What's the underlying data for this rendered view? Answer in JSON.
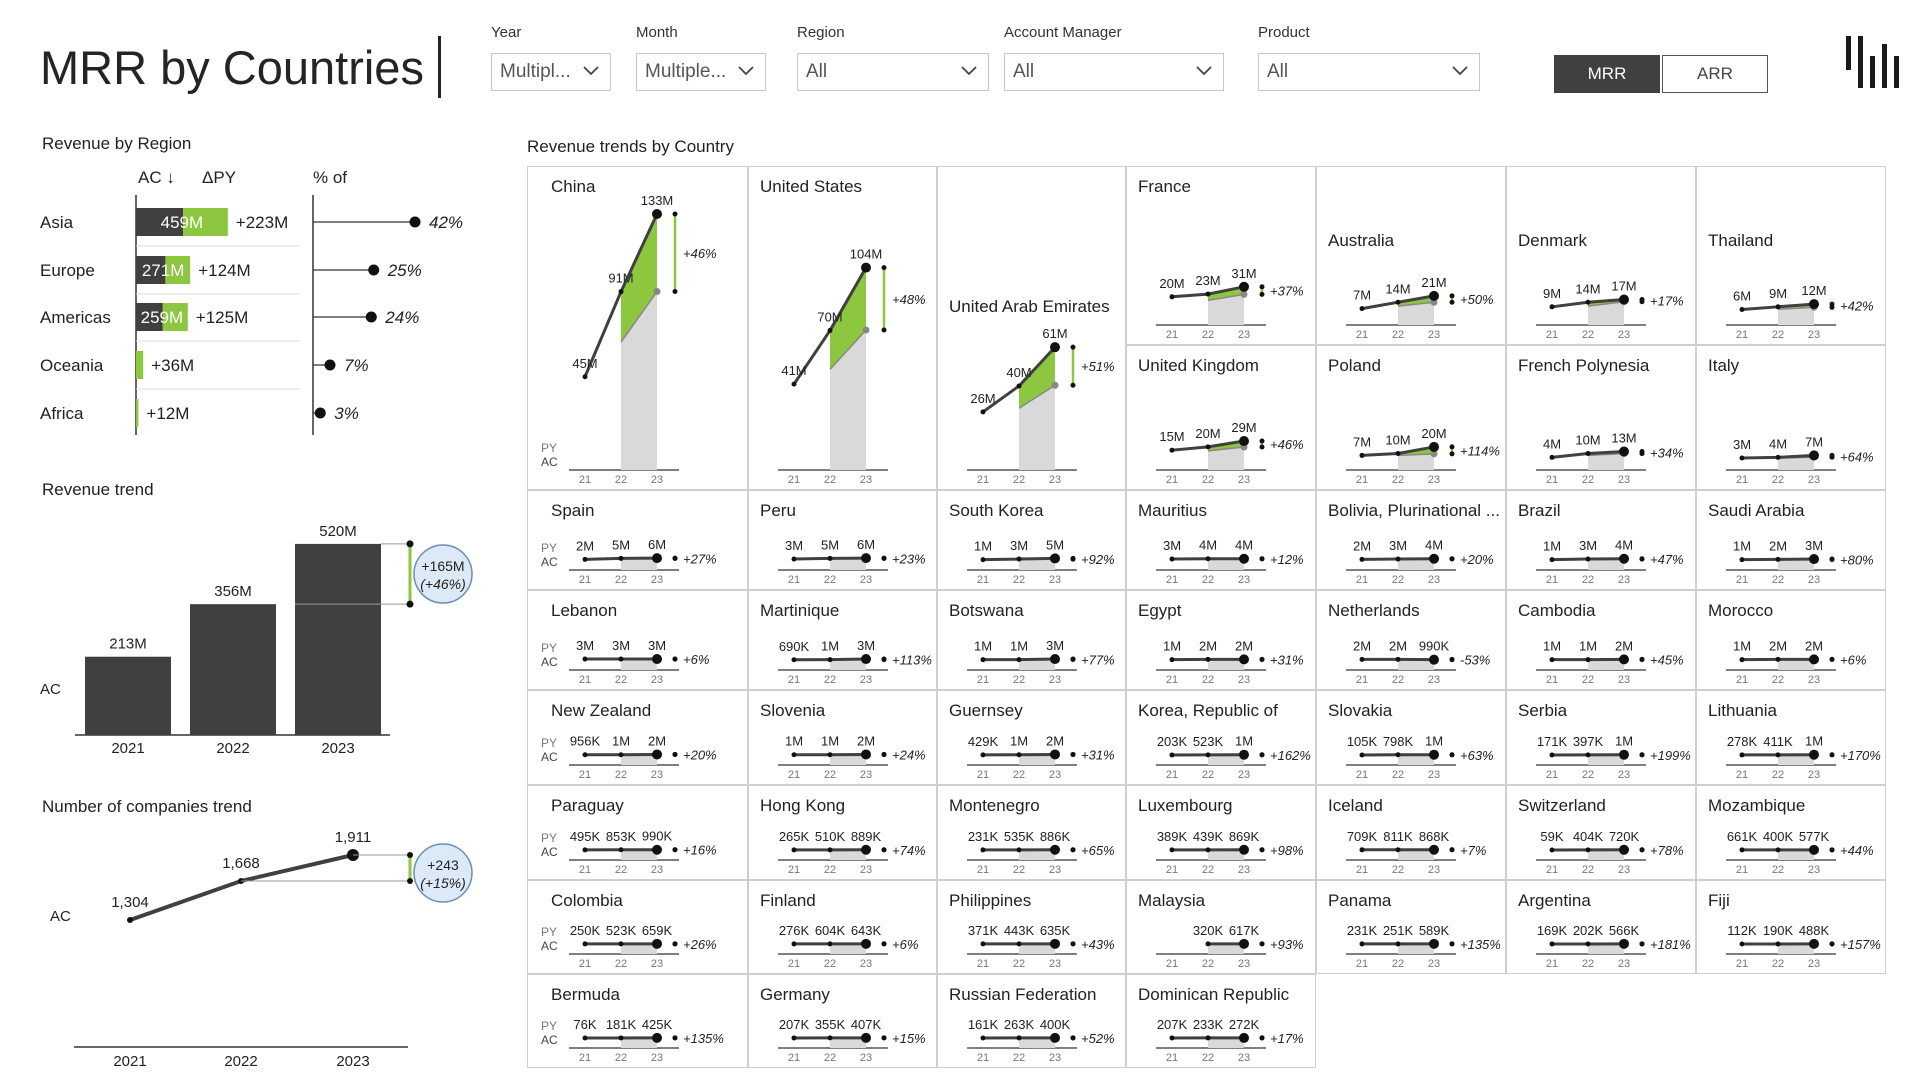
{
  "header": {
    "title": "MRR by Countries",
    "filters": [
      {
        "label": "Year",
        "value": "Multipl..."
      },
      {
        "label": "Month",
        "value": "Multiple..."
      },
      {
        "label": "Region",
        "value": "All"
      },
      {
        "label": "Account Manager",
        "value": "All"
      },
      {
        "label": "Product",
        "value": "All"
      }
    ],
    "toggle": {
      "mrr": "MRR",
      "arr": "ARR",
      "active": "MRR"
    },
    "logo_icon": "bars-logo-icon"
  },
  "colors": {
    "ac": "#404040",
    "py": "#d9d9d9",
    "delta": "#8dc63f",
    "dark": "#262626"
  },
  "chart_data": [
    {
      "id": "revenue-by-region",
      "type": "bar",
      "title": "Revenue by Region",
      "columns": [
        "AC ↓",
        "ΔPY",
        "% of"
      ],
      "categories": [
        "Asia",
        "Europe",
        "Americas",
        "Oceania",
        "Africa"
      ],
      "ac": [
        459,
        271,
        259,
        36,
        12
      ],
      "delta_py": [
        223,
        124,
        125,
        36,
        12
      ],
      "ac_labels": [
        "459M",
        "271M",
        "259M",
        "",
        ""
      ],
      "delta_labels": [
        "+223M",
        "+124M",
        "+125M",
        "+36M",
        "+12M"
      ],
      "percent_of": [
        42,
        25,
        24,
        7,
        3
      ],
      "percent_labels": [
        "42%",
        "25%",
        "24%",
        "7%",
        "3%"
      ]
    },
    {
      "id": "revenue-trend",
      "type": "bar",
      "title": "Revenue trend",
      "categories": [
        "2021",
        "2022",
        "2023"
      ],
      "values": [
        213,
        356,
        520
      ],
      "value_labels": [
        "213M",
        "356M",
        "520M"
      ],
      "series_label": "AC",
      "variance": {
        "abs": "+165M",
        "pct": "(+46%)"
      }
    },
    {
      "id": "companies-trend",
      "type": "line",
      "title": "Number of companies trend",
      "categories": [
        "2021",
        "2022",
        "2023"
      ],
      "values": [
        1304,
        1668,
        1911
      ],
      "value_labels": [
        "1,304",
        "1,668",
        "1,911"
      ],
      "series_label": "AC",
      "variance": {
        "abs": "+243",
        "pct": "(+15%)"
      }
    },
    {
      "id": "country-small-multiples",
      "type": "line",
      "title": "Revenue trends by Country",
      "x_ticks": [
        "21",
        "22",
        "23"
      ],
      "ac_label": "AC",
      "py_label": "PY",
      "countries": [
        {
          "name": "China",
          "labels": [
            "45M",
            "91M",
            "133M"
          ],
          "values": [
            45,
            91,
            133
          ],
          "delta": "+46%"
        },
        {
          "name": "United States",
          "labels": [
            "41M",
            "70M",
            "104M"
          ],
          "values": [
            41,
            70,
            104
          ],
          "delta": "+48%"
        },
        {
          "name": "United Arab Emirates",
          "labels": [
            "26M",
            "40M",
            "61M"
          ],
          "values": [
            26,
            40,
            61
          ],
          "delta": "+51%"
        },
        {
          "name": "France",
          "labels": [
            "20M",
            "23M",
            "31M"
          ],
          "values": [
            20,
            23,
            31
          ],
          "delta": "+37%"
        },
        {
          "name": "United Kingdom",
          "labels": [
            "15M",
            "20M",
            "29M"
          ],
          "values": [
            15,
            20,
            29
          ],
          "delta": "+46%"
        },
        {
          "name": "Australia",
          "labels": [
            "7M",
            "14M",
            "21M"
          ],
          "values": [
            7,
            14,
            21
          ],
          "delta": "+50%"
        },
        {
          "name": "Poland",
          "labels": [
            "7M",
            "10M",
            "20M"
          ],
          "values": [
            7,
            10,
            20
          ],
          "delta": "+114%"
        },
        {
          "name": "Denmark",
          "labels": [
            "9M",
            "14M",
            "17M"
          ],
          "values": [
            9,
            14,
            17
          ],
          "delta": "+17%"
        },
        {
          "name": "French Polynesia",
          "labels": [
            "4M",
            "10M",
            "13M"
          ],
          "values": [
            4,
            10,
            13
          ],
          "delta": "+34%"
        },
        {
          "name": "Thailand",
          "labels": [
            "6M",
            "9M",
            "12M"
          ],
          "values": [
            6,
            9,
            12
          ],
          "delta": "+42%"
        },
        {
          "name": "Italy",
          "labels": [
            "3M",
            "4M",
            "7M"
          ],
          "values": [
            3,
            4,
            7
          ],
          "delta": "+64%"
        },
        {
          "name": "Spain",
          "labels": [
            "2M",
            "5M",
            "6M"
          ],
          "values": [
            2,
            5,
            6
          ],
          "delta": "+27%"
        },
        {
          "name": "Peru",
          "labels": [
            "3M",
            "5M",
            "6M"
          ],
          "values": [
            3,
            5,
            6
          ],
          "delta": "+23%"
        },
        {
          "name": "South Korea",
          "labels": [
            "1M",
            "3M",
            "5M"
          ],
          "values": [
            1,
            3,
            5
          ],
          "delta": "+92%"
        },
        {
          "name": "Mauritius",
          "labels": [
            "3M",
            "4M",
            "4M"
          ],
          "values": [
            3,
            4,
            4
          ],
          "delta": "+12%"
        },
        {
          "name": "Bolivia, Plurinational ...",
          "labels": [
            "2M",
            "3M",
            "4M"
          ],
          "values": [
            2,
            3,
            4
          ],
          "delta": "+20%"
        },
        {
          "name": "Brazil",
          "labels": [
            "1M",
            "3M",
            "4M"
          ],
          "values": [
            1,
            3,
            4
          ],
          "delta": "+47%"
        },
        {
          "name": "Saudi Arabia",
          "labels": [
            "1M",
            "2M",
            "3M"
          ],
          "values": [
            1,
            2,
            3
          ],
          "delta": "+80%"
        },
        {
          "name": "Lebanon",
          "labels": [
            "3M",
            "3M",
            "3M"
          ],
          "values": [
            3,
            3,
            3
          ],
          "delta": "+6%"
        },
        {
          "name": "Martinique",
          "labels": [
            "690K",
            "1M",
            "3M"
          ],
          "values": [
            0.69,
            1,
            3
          ],
          "delta": "+113%"
        },
        {
          "name": "Botswana",
          "labels": [
            "1M",
            "1M",
            "3M"
          ],
          "values": [
            1,
            1,
            3
          ],
          "delta": "+77%"
        },
        {
          "name": "Egypt",
          "labels": [
            "1M",
            "2M",
            "2M"
          ],
          "values": [
            1,
            2,
            2
          ],
          "delta": "+31%"
        },
        {
          "name": "Netherlands",
          "labels": [
            "2M",
            "2M",
            "990K"
          ],
          "values": [
            2,
            2,
            0.99
          ],
          "delta": "-53%"
        },
        {
          "name": "Cambodia",
          "labels": [
            "1M",
            "1M",
            "2M"
          ],
          "values": [
            1,
            1,
            2
          ],
          "delta": "+45%"
        },
        {
          "name": "Morocco",
          "labels": [
            "1M",
            "2M",
            "2M"
          ],
          "values": [
            1,
            2,
            2
          ],
          "delta": "+6%"
        },
        {
          "name": "New Zealand",
          "labels": [
            "956K",
            "1M",
            "2M"
          ],
          "values": [
            0.956,
            1,
            2
          ],
          "delta": "+20%"
        },
        {
          "name": "Slovenia",
          "labels": [
            "1M",
            "1M",
            "2M"
          ],
          "values": [
            1,
            1,
            2
          ],
          "delta": "+24%"
        },
        {
          "name": "Guernsey",
          "labels": [
            "429K",
            "1M",
            "2M"
          ],
          "values": [
            0.429,
            1,
            2
          ],
          "delta": "+31%"
        },
        {
          "name": "Korea, Republic of",
          "labels": [
            "203K",
            "523K",
            "1M"
          ],
          "values": [
            0.203,
            0.523,
            1
          ],
          "delta": "+162%"
        },
        {
          "name": "Slovakia",
          "labels": [
            "105K",
            "798K",
            "1M"
          ],
          "values": [
            0.105,
            0.798,
            1
          ],
          "delta": "+63%"
        },
        {
          "name": "Serbia",
          "labels": [
            "171K",
            "397K",
            "1M"
          ],
          "values": [
            0.171,
            0.397,
            1
          ],
          "delta": "+199%"
        },
        {
          "name": "Lithuania",
          "labels": [
            "278K",
            "411K",
            "1M"
          ],
          "values": [
            0.278,
            0.411,
            1
          ],
          "delta": "+170%"
        },
        {
          "name": "Paraguay",
          "labels": [
            "495K",
            "853K",
            "990K"
          ],
          "values": [
            0.495,
            0.853,
            0.99
          ],
          "delta": "+16%"
        },
        {
          "name": "Hong Kong",
          "labels": [
            "265K",
            "510K",
            "889K"
          ],
          "values": [
            0.265,
            0.51,
            0.889
          ],
          "delta": "+74%"
        },
        {
          "name": "Montenegro",
          "labels": [
            "231K",
            "535K",
            "886K"
          ],
          "values": [
            0.231,
            0.535,
            0.886
          ],
          "delta": "+65%"
        },
        {
          "name": "Luxembourg",
          "labels": [
            "389K",
            "439K",
            "869K"
          ],
          "values": [
            0.389,
            0.439,
            0.869
          ],
          "delta": "+98%"
        },
        {
          "name": "Iceland",
          "labels": [
            "709K",
            "811K",
            "868K"
          ],
          "values": [
            0.709,
            0.811,
            0.868
          ],
          "delta": "+7%"
        },
        {
          "name": "Switzerland",
          "labels": [
            "59K",
            "404K",
            "720K"
          ],
          "values": [
            0.059,
            0.404,
            0.72
          ],
          "delta": "+78%"
        },
        {
          "name": "Mozambique",
          "labels": [
            "661K",
            "400K",
            "577K"
          ],
          "values": [
            0.661,
            0.4,
            0.577
          ],
          "delta": "+44%"
        },
        {
          "name": "Colombia",
          "labels": [
            "250K",
            "523K",
            "659K"
          ],
          "values": [
            0.25,
            0.523,
            0.659
          ],
          "delta": "+26%"
        },
        {
          "name": "Finland",
          "labels": [
            "276K",
            "604K",
            "643K"
          ],
          "values": [
            0.276,
            0.604,
            0.643
          ],
          "delta": "+6%"
        },
        {
          "name": "Philippines",
          "labels": [
            "371K",
            "443K",
            "635K"
          ],
          "values": [
            0.371,
            0.443,
            0.635
          ],
          "delta": "+43%"
        },
        {
          "name": "Malaysia",
          "labels": [
            "",
            "320K",
            "617K"
          ],
          "values": [
            null,
            0.32,
            0.617
          ],
          "delta": "+93%"
        },
        {
          "name": "Panama",
          "labels": [
            "231K",
            "251K",
            "589K"
          ],
          "values": [
            0.231,
            0.251,
            0.589
          ],
          "delta": "+135%"
        },
        {
          "name": "Argentina",
          "labels": [
            "169K",
            "202K",
            "566K"
          ],
          "values": [
            0.169,
            0.202,
            0.566
          ],
          "delta": "+181%"
        },
        {
          "name": "Fiji",
          "labels": [
            "112K",
            "190K",
            "488K"
          ],
          "values": [
            0.112,
            0.19,
            0.488
          ],
          "delta": "+157%"
        },
        {
          "name": "Bermuda",
          "labels": [
            "76K",
            "181K",
            "425K"
          ],
          "values": [
            0.076,
            0.181,
            0.425
          ],
          "delta": "+135%"
        },
        {
          "name": "Germany",
          "labels": [
            "207K",
            "355K",
            "407K"
          ],
          "values": [
            0.207,
            0.355,
            0.407
          ],
          "delta": "+15%"
        },
        {
          "name": "Russian Federation",
          "labels": [
            "161K",
            "263K",
            "400K"
          ],
          "values": [
            0.161,
            0.263,
            0.4
          ],
          "delta": "+52%"
        },
        {
          "name": "Dominican Republic",
          "labels": [
            "207K",
            "233K",
            "272K"
          ],
          "values": [
            0.207,
            0.233,
            0.272
          ],
          "delta": "+17%"
        }
      ]
    }
  ]
}
